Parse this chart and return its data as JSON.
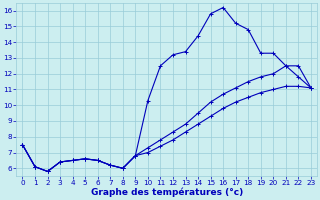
{
  "xlabel": "Graphe des températures (°c)",
  "hours": [
    0,
    1,
    2,
    3,
    4,
    5,
    6,
    7,
    8,
    9,
    10,
    11,
    12,
    13,
    14,
    15,
    16,
    17,
    18,
    19,
    20,
    21,
    22,
    23
  ],
  "line1": [
    7.5,
    6.1,
    5.8,
    6.4,
    6.5,
    6.6,
    6.5,
    6.2,
    6.0,
    6.8,
    10.3,
    12.5,
    13.2,
    13.4,
    14.4,
    15.8,
    16.2,
    15.2,
    14.8,
    13.3,
    13.3,
    12.5,
    11.8,
    11.1
  ],
  "line2": [
    7.5,
    6.1,
    5.8,
    6.4,
    6.5,
    6.6,
    6.5,
    6.2,
    6.0,
    6.8,
    7.3,
    7.8,
    8.3,
    8.8,
    9.5,
    10.2,
    10.7,
    11.1,
    11.5,
    11.8,
    12.0,
    12.5,
    12.5,
    11.1
  ],
  "line3": [
    7.5,
    6.1,
    5.8,
    6.4,
    6.5,
    6.6,
    6.5,
    6.2,
    6.0,
    6.8,
    7.0,
    7.4,
    7.8,
    8.3,
    8.8,
    9.3,
    9.8,
    10.2,
    10.5,
    10.8,
    11.0,
    11.2,
    11.2,
    11.1
  ],
  "bg_color": "#cceef0",
  "grid_color": "#99ccd8",
  "line_color": "#0000bb",
  "ylim_min": 5.5,
  "ylim_max": 16.5,
  "yticks": [
    6,
    7,
    8,
    9,
    10,
    11,
    12,
    13,
    14,
    15,
    16
  ],
  "xticks": [
    0,
    1,
    2,
    3,
    4,
    5,
    6,
    7,
    8,
    9,
    10,
    11,
    12,
    13,
    14,
    15,
    16,
    17,
    18,
    19,
    20,
    21,
    22,
    23
  ],
  "marker": "+",
  "marker_size": 3.5,
  "line_width": 0.8,
  "tick_fontsize": 5.2,
  "xlabel_fontsize": 6.5
}
